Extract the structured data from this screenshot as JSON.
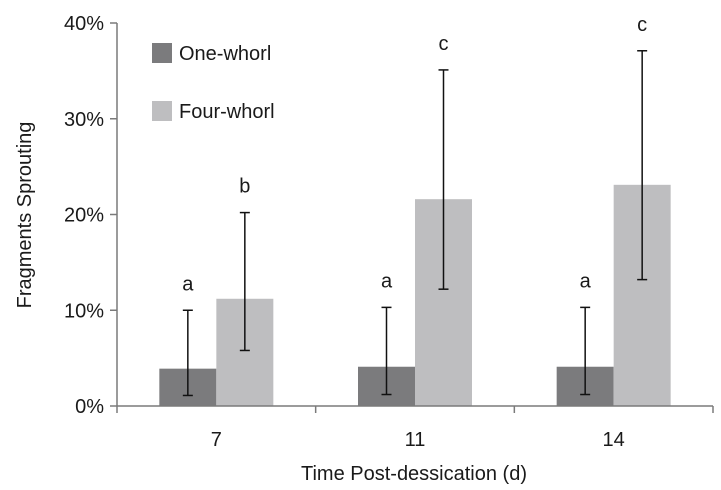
{
  "chart_data": {
    "type": "bar",
    "title": "",
    "xlabel": "Time Post-dessication (d)",
    "ylabel": "Fragments Sprouting",
    "ylim": [
      0,
      40
    ],
    "yticks": [
      0,
      10,
      20,
      30,
      40
    ],
    "ytick_labels": [
      "0%",
      "10%",
      "20%",
      "30%",
      "40%"
    ],
    "categories": [
      "7",
      "11",
      "14"
    ],
    "grid": false,
    "legend_position": "top-left",
    "series": [
      {
        "name": "One-whorl",
        "color": "#7b7b7d",
        "values": [
          3.9,
          4.1,
          4.1
        ],
        "error_low": [
          1.1,
          1.2,
          1.2
        ],
        "error_high": [
          10.0,
          10.3,
          10.3
        ],
        "significance": [
          "a",
          "a",
          "a"
        ]
      },
      {
        "name": "Four-whorl",
        "color": "#bebec0",
        "values": [
          11.2,
          21.6,
          23.1
        ],
        "error_low": [
          5.8,
          12.2,
          13.2
        ],
        "error_high": [
          20.2,
          35.1,
          37.1
        ],
        "significance": [
          "b",
          "c",
          "c"
        ]
      }
    ]
  }
}
